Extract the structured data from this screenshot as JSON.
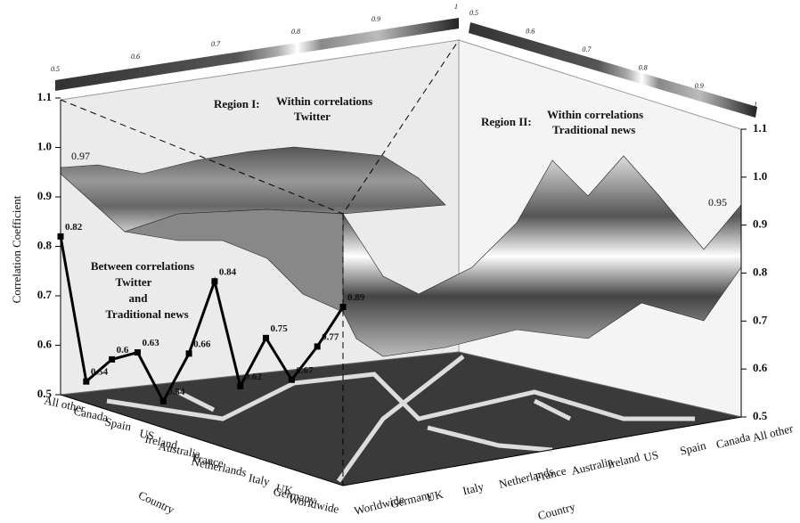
{
  "chart_data": {
    "type": "line",
    "ylabel": "Correlation Coefficient",
    "xlabel": "Country",
    "categories": [
      "All other",
      "Canada",
      "Spain",
      "US",
      "Ireland",
      "Australia",
      "France",
      "Netherlands",
      "Italy",
      "UK",
      "Germany",
      "Worldwide"
    ],
    "values": [
      0.82,
      0.54,
      0.6,
      0.63,
      0.54,
      0.66,
      0.84,
      0.62,
      0.75,
      0.67,
      0.77,
      0.89
    ],
    "color": "#000000",
    "ylim": [
      0.5,
      1.1
    ],
    "yticks": [
      0.5,
      0.6,
      0.7,
      0.8,
      0.9,
      {
        "value": 1,
        "label": "1.0"
      },
      1.1
    ],
    "y2lim": [
      0.5,
      1.1
    ],
    "y2ticks": [
      0.5,
      0.6,
      0.7,
      0.8,
      0.9,
      {
        "value": 1,
        "label": "1.0"
      },
      1.1
    ],
    "surface_labels": [
      0.97,
      0.95
    ],
    "region_one": [
      "Region I:",
      "Within correlations",
      "Twitter"
    ],
    "region_two": [
      "Region II:",
      "Within correlations",
      "Traditional news"
    ],
    "between_note": [
      "Between correlations",
      "Twitter",
      "and",
      "Traditional news"
    ],
    "colorbars": [
      {
        "ticks": [
          0.5,
          0.6,
          0.7,
          0.8,
          0.9,
          1
        ]
      },
      {
        "ticks": [
          0.5,
          0.6,
          0.7,
          0.8,
          0.9,
          1
        ]
      }
    ]
  }
}
